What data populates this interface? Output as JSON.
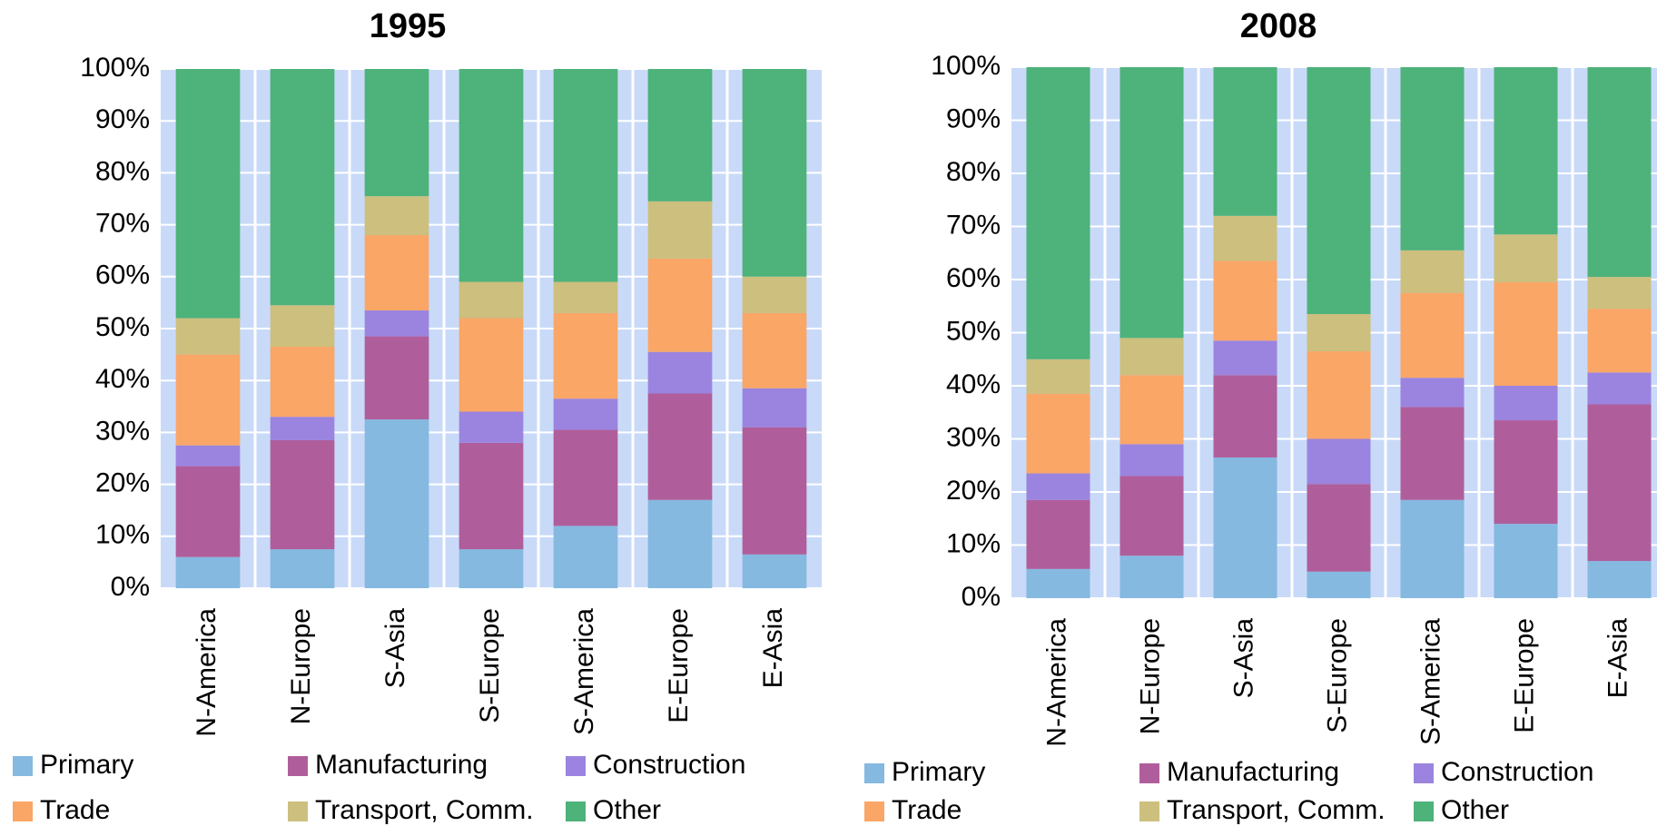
{
  "chart_data": [
    {
      "type": "bar",
      "stacked": true,
      "title": "1995",
      "categories": [
        "N-America",
        "N-Europe",
        "S-Asia",
        "S-Europe",
        "S-America",
        "E-Europe",
        "E-Asia"
      ],
      "series": [
        {
          "name": "Primary",
          "color": "#85b9e0",
          "values": [
            6,
            7.5,
            32.5,
            7.5,
            12,
            17,
            6.5
          ]
        },
        {
          "name": "Manufacturing",
          "color": "#b05e9b",
          "values": [
            17.5,
            21,
            16,
            20.5,
            18.5,
            20.5,
            24.5
          ]
        },
        {
          "name": "Construction",
          "color": "#9b84df",
          "values": [
            4,
            4.5,
            5,
            6,
            6,
            8,
            7.5
          ]
        },
        {
          "name": "Trade",
          "color": "#f9a667",
          "values": [
            17.5,
            13.5,
            14.5,
            18,
            16.5,
            18,
            14.5
          ]
        },
        {
          "name": "Transport, Comm.",
          "color": "#cdbf7d",
          "values": [
            7,
            8,
            7.5,
            7,
            6,
            11,
            7
          ]
        },
        {
          "name": "Other",
          "color": "#4eb27b",
          "values": [
            48,
            45.5,
            24.5,
            41,
            41,
            25.5,
            40
          ]
        }
      ],
      "ylim": [
        0,
        100
      ],
      "yticks": [
        {
          "value": 0,
          "label": "0%"
        },
        {
          "value": 10,
          "label": "10%"
        },
        {
          "value": 20,
          "label": "20%"
        },
        {
          "value": 30,
          "label": "30%"
        },
        {
          "value": 40,
          "label": "40%"
        },
        {
          "value": 50,
          "label": "50%"
        },
        {
          "value": 60,
          "label": "60%"
        },
        {
          "value": 70,
          "label": "70%"
        },
        {
          "value": 80,
          "label": "80%"
        },
        {
          "value": 90,
          "label": "90%"
        },
        {
          "value": 100,
          "label": "100%"
        }
      ],
      "grid": true
    },
    {
      "type": "bar",
      "stacked": true,
      "title": "2008",
      "categories": [
        "N-America",
        "N-Europe",
        "S-Asia",
        "S-Europe",
        "S-America",
        "E-Europe",
        "E-Asia"
      ],
      "series": [
        {
          "name": "Primary",
          "color": "#85b9e0",
          "values": [
            5.5,
            8,
            26.5,
            5,
            18.5,
            14,
            7
          ]
        },
        {
          "name": "Manufacturing",
          "color": "#b05e9b",
          "values": [
            13,
            15,
            15.5,
            16.5,
            17.5,
            19.5,
            29.5
          ]
        },
        {
          "name": "Construction",
          "color": "#9b84df",
          "values": [
            5,
            6,
            6.5,
            8.5,
            5.5,
            6.5,
            6
          ]
        },
        {
          "name": "Trade",
          "color": "#f9a667",
          "values": [
            15,
            13,
            15,
            16.5,
            16,
            19.5,
            12
          ]
        },
        {
          "name": "Transport, Comm.",
          "color": "#cdbf7d",
          "values": [
            6.5,
            7,
            8.5,
            7,
            8,
            9,
            6
          ]
        },
        {
          "name": "Other",
          "color": "#4eb27b",
          "values": [
            55,
            51,
            28,
            46.5,
            34.5,
            31.5,
            39.5
          ]
        }
      ],
      "ylim": [
        0,
        100
      ],
      "yticks": [
        {
          "value": 0,
          "label": "0%"
        },
        {
          "value": 10,
          "label": "10%"
        },
        {
          "value": 20,
          "label": "20%"
        },
        {
          "value": 30,
          "label": "30%"
        },
        {
          "value": 40,
          "label": "40%"
        },
        {
          "value": 50,
          "label": "50%"
        },
        {
          "value": 60,
          "label": "60%"
        },
        {
          "value": 70,
          "label": "70%"
        },
        {
          "value": 80,
          "label": "80%"
        },
        {
          "value": 90,
          "label": "90%"
        },
        {
          "value": 100,
          "label": "100%"
        }
      ],
      "grid": true
    }
  ]
}
